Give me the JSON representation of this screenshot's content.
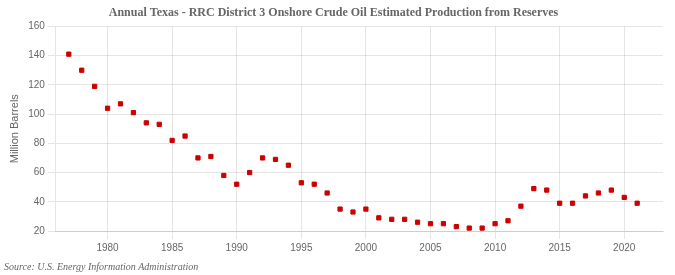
{
  "chart_data": {
    "type": "scatter",
    "title": "Annual Texas - RRC District 3 Onshore Crude Oil Estimated Production from Reserves",
    "ylabel": "Million Barrels",
    "source": "Source: U.S. Energy Information Administration",
    "x": [
      1977,
      1978,
      1979,
      1980,
      1981,
      1982,
      1983,
      1984,
      1985,
      1986,
      1987,
      1988,
      1989,
      1990,
      1991,
      1992,
      1993,
      1994,
      1995,
      1996,
      1997,
      1998,
      1999,
      2000,
      2001,
      2002,
      2003,
      2004,
      2005,
      2006,
      2007,
      2008,
      2009,
      2010,
      2011,
      2012,
      2013,
      2014,
      2015,
      2016,
      2017,
      2018,
      2019,
      2020,
      2021
    ],
    "values": [
      141,
      130,
      119,
      104,
      107,
      101,
      94,
      93,
      82,
      85,
      70,
      71,
      58,
      52,
      60,
      70,
      69,
      65,
      53,
      52,
      46,
      35,
      33,
      35,
      29,
      28,
      28,
      26,
      25,
      25,
      23,
      22,
      22,
      25,
      27,
      37,
      49,
      48,
      39,
      39,
      44,
      46,
      48,
      43,
      39
    ],
    "color": "#cc0000",
    "marker": "square",
    "xlim": [
      1976,
      2023
    ],
    "ylim": [
      20,
      160
    ],
    "xticks": [
      1980,
      1985,
      1990,
      1995,
      2000,
      2005,
      2010,
      2015,
      2020
    ],
    "yticks": [
      20,
      40,
      60,
      80,
      100,
      120,
      140,
      160
    ],
    "grid": true
  }
}
